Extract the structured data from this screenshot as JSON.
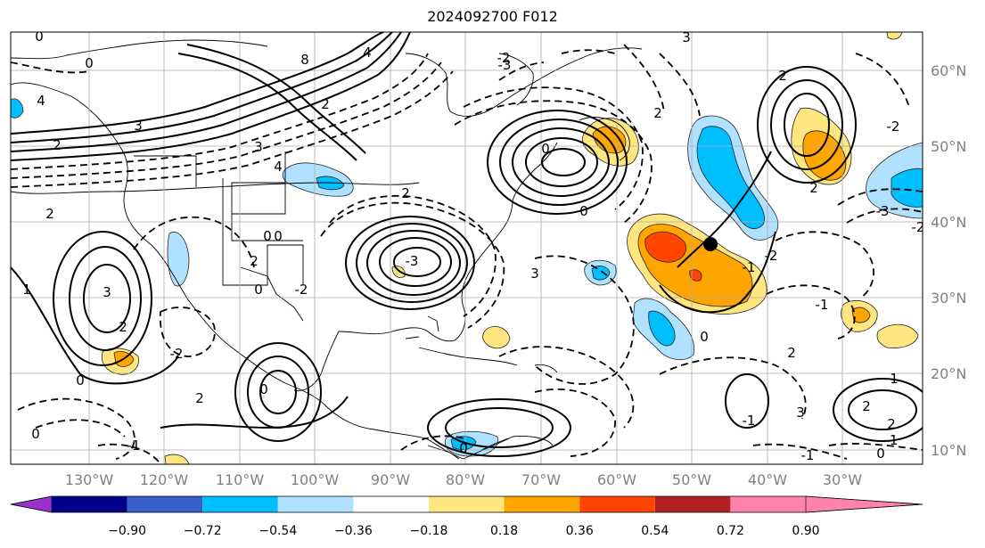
{
  "title": "2024092700 F012",
  "map": {
    "lon_labels": [
      "130°W",
      "120°W",
      "110°W",
      "100°W",
      "90°W",
      "80°W",
      "70°W",
      "60°W",
      "50°W",
      "40°W",
      "30°W"
    ],
    "lat_labels": [
      "60°N",
      "50°N",
      "40°N",
      "30°N",
      "20°N",
      "10°N"
    ],
    "contour_labels": [
      "0",
      "0",
      "4",
      "2",
      "3",
      "2",
      "8",
      "4",
      "2",
      "3",
      "4",
      "0",
      "2",
      "0",
      "3",
      "2",
      "0",
      "-2",
      "2",
      "0",
      "-3",
      "2",
      "0",
      "-2",
      "3",
      "0",
      "0",
      "0",
      "-2",
      "-3",
      "2",
      "3",
      "-2",
      "-3",
      "0",
      "2",
      "-2",
      "-1",
      "2",
      "3",
      "2",
      "1",
      "-1",
      "2",
      "-1",
      "0",
      "2",
      "-1",
      "0",
      "-2",
      "-1",
      "1",
      "-1"
    ]
  },
  "colorbar": {
    "labels": [
      "−0.90",
      "−0.72",
      "−0.54",
      "−0.36",
      "−0.18",
      "0.18",
      "0.36",
      "0.54",
      "0.72",
      "0.90"
    ],
    "colors": [
      "#9932cc",
      "#00008b",
      "#3a5fcd",
      "#00bfff",
      "#b0e2ff",
      "#ffffff",
      "#ffe680",
      "#ffa500",
      "#ff4500",
      "#b22222",
      "#ff82ab"
    ]
  }
}
